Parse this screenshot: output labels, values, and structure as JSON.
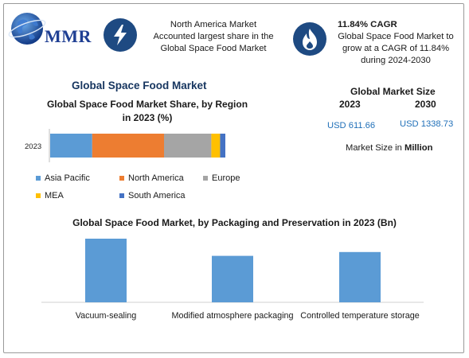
{
  "brand": {
    "logo_text": "MMR"
  },
  "colors": {
    "navy": "#1e4a82",
    "accent_blue": "#1f6fb8",
    "bar_blue": "#5b9bd5"
  },
  "header": {
    "insight_1": {
      "icon": "lightning-icon",
      "lines": [
        "North America Market",
        "Accounted largest share in the",
        "Global Space Food Market"
      ]
    },
    "insight_2": {
      "icon": "flame-icon",
      "title": "11.84% CAGR",
      "lines": [
        "Global Space Food Market to",
        "grow at a CAGR of 11.84%",
        "during 2024-2030"
      ]
    }
  },
  "main_title": "Global Space Food Market",
  "market_size": {
    "title": "Global Market Size",
    "year_1": "2023",
    "year_2": "2030",
    "value_1": "USD 611.66",
    "value_2": "USD 1338.73",
    "unit_prefix": "Market Size in",
    "unit": "Million"
  },
  "chart_data": [
    {
      "type": "bar",
      "orientation": "horizontal-stacked",
      "title": "Global Space Food Market Share, by Region in 2023 (%)",
      "title_lines": [
        "Global Space Food Market Share, by Region",
        "in 2023 (%)"
      ],
      "categories": [
        "2023"
      ],
      "xlim": [
        0,
        100
      ],
      "series": [
        {
          "name": "Asia Pacific",
          "color": "#5b9bd5",
          "values": [
            24
          ]
        },
        {
          "name": "North America",
          "color": "#ed7d31",
          "values": [
            41
          ]
        },
        {
          "name": "Europe",
          "color": "#a5a5a5",
          "values": [
            27
          ]
        },
        {
          "name": "MEA",
          "color": "#ffc000",
          "values": [
            5
          ]
        },
        {
          "name": "South America",
          "color": "#4472c4",
          "values": [
            3
          ]
        }
      ],
      "legend_position": "bottom"
    },
    {
      "type": "bar",
      "title": "Global Space Food Market, by Packaging and Preservation  in 2023 (Bn)",
      "categories": [
        "Vacuum-sealing",
        "Modified atmosphere packaging",
        "Controlled temperature storage"
      ],
      "values": [
        1.0,
        0.73,
        0.79
      ],
      "ylim": [
        0,
        1.0
      ],
      "color": "#5b9bd5",
      "grid": false
    }
  ]
}
